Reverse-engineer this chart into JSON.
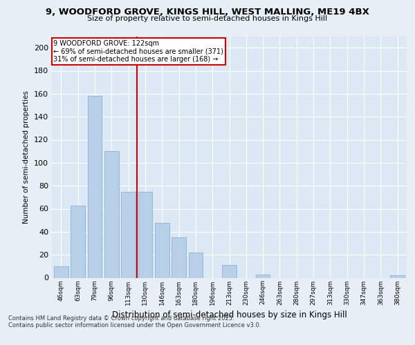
{
  "title1": "9, WOODFORD GROVE, KINGS HILL, WEST MALLING, ME19 4BX",
  "title2": "Size of property relative to semi-detached houses in Kings Hill",
  "xlabel": "Distribution of semi-detached houses by size in Kings Hill",
  "ylabel": "Number of semi-detached properties",
  "categories": [
    "46sqm",
    "63sqm",
    "79sqm",
    "96sqm",
    "113sqm",
    "130sqm",
    "146sqm",
    "163sqm",
    "180sqm",
    "196sqm",
    "213sqm",
    "230sqm",
    "246sqm",
    "263sqm",
    "280sqm",
    "297sqm",
    "313sqm",
    "330sqm",
    "347sqm",
    "363sqm",
    "380sqm"
  ],
  "values": [
    10,
    63,
    158,
    110,
    75,
    75,
    48,
    35,
    22,
    0,
    11,
    0,
    3,
    0,
    0,
    0,
    0,
    0,
    0,
    0,
    2
  ],
  "bar_color": "#b8cfe8",
  "bar_edge_color": "#8aafd4",
  "vline_x": 4.5,
  "vline_color": "#cc0000",
  "annotation_title": "9 WOODFORD GROVE: 122sqm",
  "annotation_line1": "← 69% of semi-detached houses are smaller (371)",
  "annotation_line2": "31% of semi-detached houses are larger (168) →",
  "annotation_box_color": "#cc0000",
  "annotation_text_color": "#000000",
  "background_color": "#e8eef5",
  "plot_bg_color": "#dce8f4",
  "grid_color": "#ffffff",
  "footer1": "Contains HM Land Registry data © Crown copyright and database right 2025.",
  "footer2": "Contains public sector information licensed under the Open Government Licence v3.0.",
  "ylim": [
    0,
    210
  ],
  "yticks": [
    0,
    20,
    40,
    60,
    80,
    100,
    120,
    140,
    160,
    180,
    200
  ]
}
